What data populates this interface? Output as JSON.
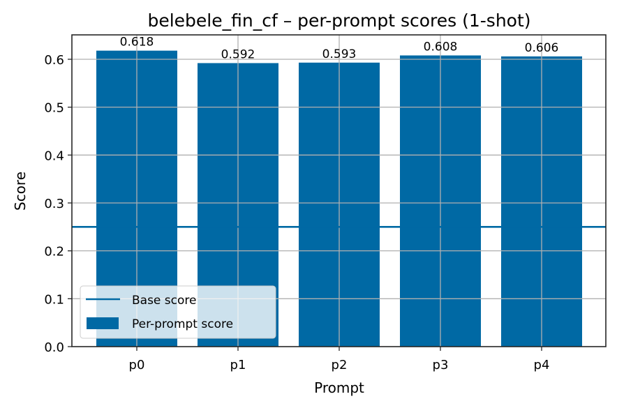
{
  "chart_data": {
    "type": "bar",
    "title": "belebele_fin_cf – per-prompt scores (1-shot)",
    "xlabel": "Prompt",
    "ylabel": "Score",
    "categories": [
      "p0",
      "p1",
      "p2",
      "p3",
      "p4"
    ],
    "values": [
      0.618,
      0.592,
      0.593,
      0.608,
      0.606
    ],
    "value_labels": [
      "0.618",
      "0.592",
      "0.593",
      "0.608",
      "0.606"
    ],
    "base_score": 0.25,
    "ylim": [
      0,
      0.65
    ],
    "yticks": [
      0.0,
      0.1,
      0.2,
      0.3,
      0.4,
      0.5,
      0.6
    ],
    "ytick_labels": [
      "0.0",
      "0.1",
      "0.2",
      "0.3",
      "0.4",
      "0.5",
      "0.6"
    ],
    "grid": true,
    "legend": {
      "position": "lower left",
      "entries": [
        {
          "label": "Base score",
          "type": "line"
        },
        {
          "label": "Per-prompt score",
          "type": "patch"
        }
      ]
    },
    "colors": {
      "bar": "#0069a4",
      "base_line": "#0069a4",
      "grid": "#b0b0b0",
      "axes": "#262626"
    }
  }
}
